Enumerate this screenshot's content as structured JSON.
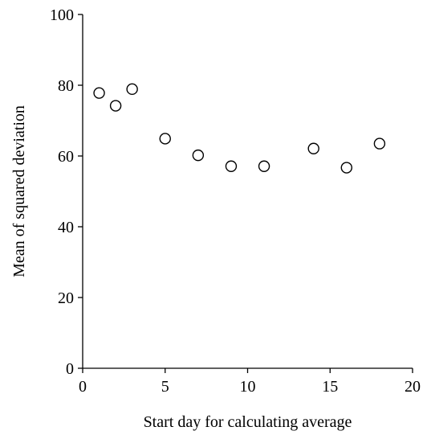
{
  "chart_data": {
    "type": "scatter",
    "title": "",
    "xlabel": "Start day for calculating average",
    "ylabel": "Mean of squared deviation",
    "xlim": [
      0,
      20
    ],
    "ylim": [
      0,
      100
    ],
    "xticks": [
      0,
      5,
      10,
      15,
      20
    ],
    "yticks": [
      0,
      20,
      40,
      60,
      80,
      100
    ],
    "grid": false,
    "legend": "none",
    "marker": "open-circle",
    "colors": {
      "marker_stroke": "#000000",
      "axis": "#000000",
      "background": "#ffffff"
    },
    "series": [
      {
        "x": [
          1,
          2,
          3,
          5,
          7,
          9,
          11,
          14,
          16,
          18
        ],
        "y": [
          77.8,
          74.2,
          78.9,
          64.9,
          60.2,
          57.1,
          57.1,
          62.1,
          56.7,
          63.5
        ]
      }
    ]
  }
}
